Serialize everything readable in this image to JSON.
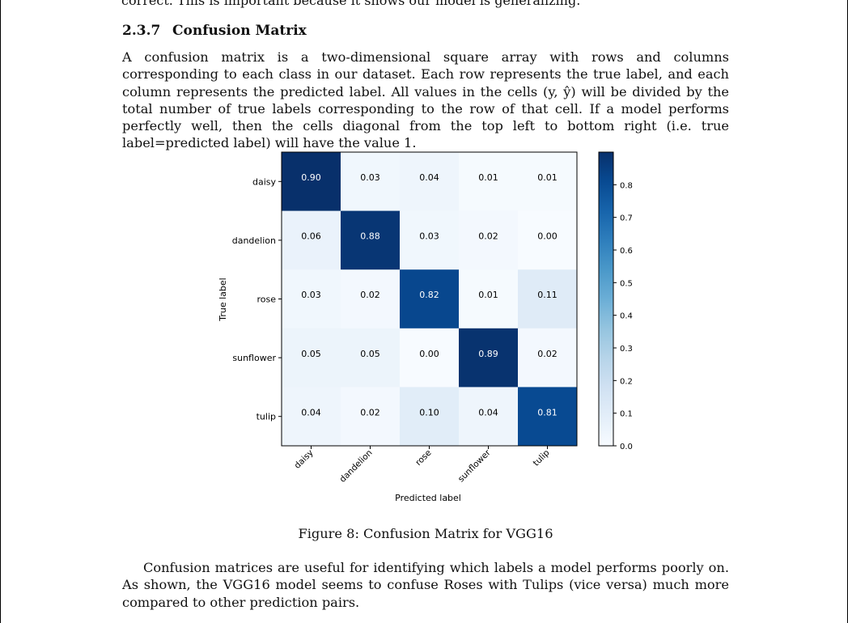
{
  "page": {
    "cut_line": "correct. This is important because it shows our model is generalizing.",
    "section_number": "2.3.7",
    "section_title": "Confusion Matrix",
    "para1": "A confusion matrix is a two-dimensional square array with rows and columns corresponding to each class in our dataset. Each row represents the true label, and each column represents the predicted label. All values in the cells (y, ŷ) will be divided by the total number of true labels corresponding to the row of that cell. If a model performs perfectly well, then the cells diagonal from the top left to bottom right (i.e. true label=predicted label) will have the value 1.",
    "caption": "Figure 8: Confusion Matrix for VGG16",
    "para2": "Confusion matrices are useful for identifying which labels a model performs poorly on. As shown, the VGG16 model seems to confuse Roses with Tulips (vice versa) much more compared to other prediction pairs."
  },
  "chart_data": {
    "type": "heatmap",
    "title": "",
    "xlabel": "Predicted label",
    "ylabel": "True label",
    "row_labels": [
      "daisy",
      "dandelion",
      "rose",
      "sunflower",
      "tulip"
    ],
    "col_labels": [
      "daisy",
      "dandelion",
      "rose",
      "sunflower",
      "tulip"
    ],
    "values": [
      [
        0.9,
        0.03,
        0.04,
        0.01,
        0.01
      ],
      [
        0.06,
        0.88,
        0.03,
        0.02,
        0.0
      ],
      [
        0.03,
        0.02,
        0.82,
        0.01,
        0.11
      ],
      [
        0.05,
        0.05,
        0.0,
        0.89,
        0.02
      ],
      [
        0.04,
        0.02,
        0.1,
        0.04,
        0.81
      ]
    ],
    "value_labels": [
      [
        "0.90",
        "0.03",
        "0.04",
        "0.01",
        "0.01"
      ],
      [
        "0.06",
        "0.88",
        "0.03",
        "0.02",
        "0.00"
      ],
      [
        "0.03",
        "0.02",
        "0.82",
        "0.01",
        "0.11"
      ],
      [
        "0.05",
        "0.05",
        "0.00",
        "0.89",
        "0.02"
      ],
      [
        "0.04",
        "0.02",
        "0.10",
        "0.04",
        "0.81"
      ]
    ],
    "colormap": "Blues",
    "colorbar": {
      "range": [
        0.0,
        0.9
      ],
      "ticks": [
        0.0,
        0.1,
        0.2,
        0.3,
        0.4,
        0.5,
        0.6,
        0.7,
        0.8
      ],
      "tick_labels": [
        "0.0",
        "0.1",
        "0.2",
        "0.3",
        "0.4",
        "0.5",
        "0.6",
        "0.7",
        "0.8"
      ]
    },
    "colors": {
      "low": "#f7fbff",
      "high": "#08306b",
      "text_light": "#ffffff",
      "text_dark": "#000000"
    }
  }
}
